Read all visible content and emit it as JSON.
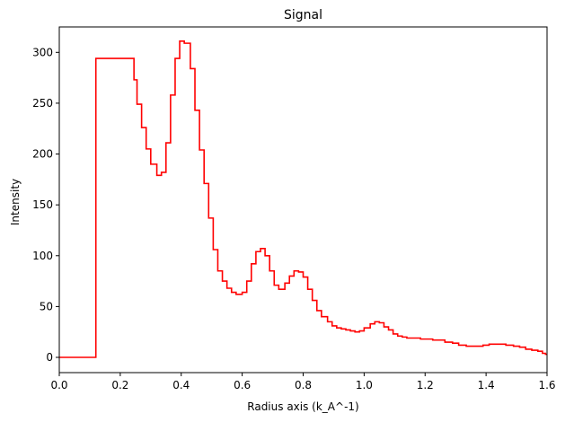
{
  "chart_data": {
    "type": "line",
    "drawstyle": "steps-mid",
    "title": "Signal",
    "xlabel": "Radius axis (k_A^-1)",
    "ylabel": "Intensity",
    "xlim": [
      0.0,
      1.6
    ],
    "ylim": [
      -15,
      325
    ],
    "xticks": [
      0.0,
      0.2,
      0.4,
      0.6,
      0.8,
      1.0,
      1.2,
      1.4,
      1.6
    ],
    "xtick_labels": [
      "0.0",
      "0.2",
      "0.4",
      "0.6",
      "0.8",
      "1.0",
      "1.2",
      "1.4",
      "1.6"
    ],
    "yticks": [
      0,
      50,
      100,
      150,
      200,
      250,
      300
    ],
    "ytick_labels": [
      "0",
      "50",
      "100",
      "150",
      "200",
      "250",
      "300"
    ],
    "grid": false,
    "series": [
      {
        "color": "#ff0000",
        "x": [
          0.0,
          0.24,
          0.25,
          0.26,
          0.28,
          0.29,
          0.31,
          0.33,
          0.34,
          0.36,
          0.37,
          0.39,
          0.4,
          0.42,
          0.44,
          0.45,
          0.47,
          0.48,
          0.5,
          0.51,
          0.53,
          0.54,
          0.56,
          0.57,
          0.59,
          0.61,
          0.62,
          0.64,
          0.65,
          0.67,
          0.68,
          0.7,
          0.71,
          0.73,
          0.75,
          0.76,
          0.78,
          0.79,
          0.81,
          0.82,
          0.84,
          0.85,
          0.87,
          0.89,
          0.9,
          0.92,
          0.93,
          0.95,
          0.96,
          0.98,
          0.99,
          1.01,
          1.03,
          1.04,
          1.06,
          1.07,
          1.09,
          1.1,
          1.12,
          1.13,
          1.15,
          1.17,
          1.2,
          1.25,
          1.28,
          1.3,
          1.32,
          1.35,
          1.38,
          1.4,
          1.42,
          1.45,
          1.48,
          1.5,
          1.52,
          1.54,
          1.56,
          1.58,
          1.59,
          1.6
        ],
        "y": [
          0,
          294,
          273,
          249,
          226,
          205,
          190,
          179,
          182,
          211,
          258,
          294,
          311,
          309,
          284,
          243,
          204,
          171,
          137,
          106,
          85,
          75,
          68,
          64,
          62,
          64,
          75,
          92,
          104,
          107,
          100,
          85,
          71,
          67,
          73,
          80,
          85,
          84,
          79,
          67,
          56,
          46,
          40,
          35,
          31,
          29,
          28,
          27,
          26,
          25,
          26,
          29,
          33,
          35,
          34,
          30,
          27,
          23,
          21,
          20,
          19,
          19,
          18,
          17,
          15,
          14,
          12,
          11,
          11,
          12,
          13,
          13,
          12,
          11,
          10,
          8,
          7,
          6,
          4,
          3
        ]
      }
    ]
  }
}
